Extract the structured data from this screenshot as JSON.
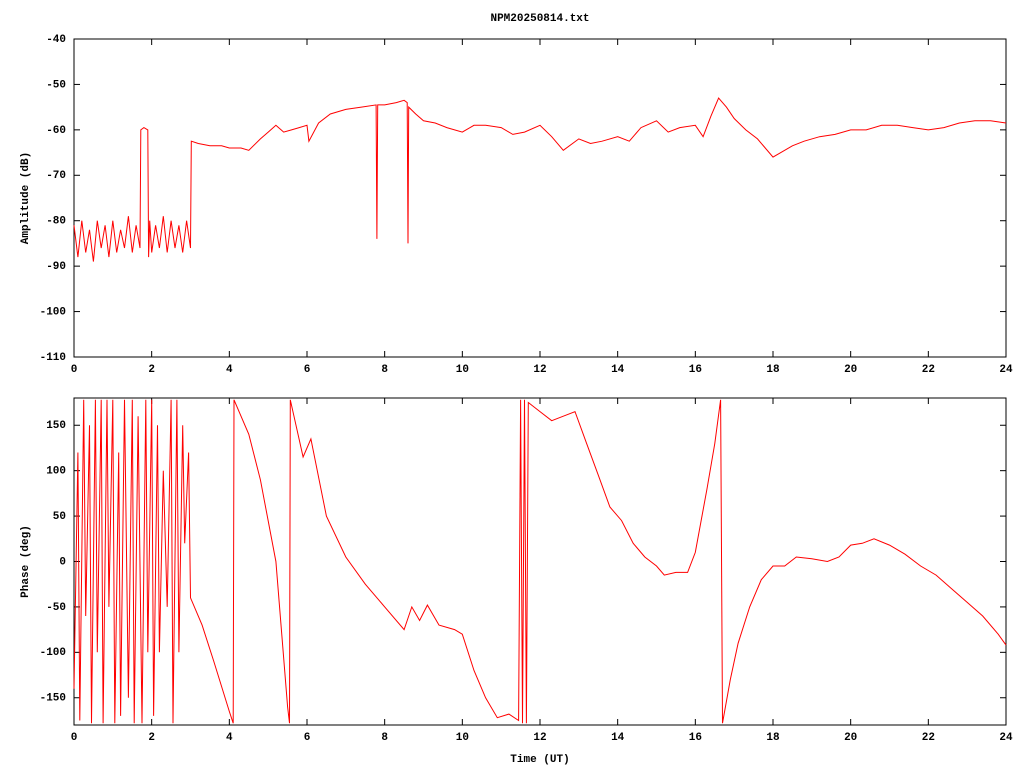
{
  "chart_data": [
    {
      "type": "line",
      "title": "NPM20250814.txt",
      "ylabel": "Amplitude (dB)",
      "xlim": [
        0,
        24
      ],
      "xticks": [
        0,
        2,
        4,
        6,
        8,
        10,
        12,
        14,
        16,
        18,
        20,
        22,
        24
      ],
      "ylim": [
        -110,
        -40
      ],
      "yticks": [
        -110,
        -100,
        -90,
        -80,
        -70,
        -60,
        -50,
        -40
      ],
      "color": "#ff0000",
      "x": [
        0,
        0.1,
        0.2,
        0.3,
        0.4,
        0.5,
        0.6,
        0.7,
        0.8,
        0.9,
        1.0,
        1.1,
        1.2,
        1.3,
        1.4,
        1.5,
        1.6,
        1.7,
        1.72,
        1.8,
        1.9,
        1.92,
        1.95,
        2.0,
        2.1,
        2.2,
        2.3,
        2.4,
        2.5,
        2.6,
        2.7,
        2.8,
        2.9,
        3.0,
        3.02,
        3.2,
        3.5,
        3.8,
        4.0,
        4.3,
        4.5,
        4.8,
        5.0,
        5.2,
        5.4,
        5.6,
        5.8,
        6.0,
        6.05,
        6.3,
        6.6,
        7.0,
        7.4,
        7.78,
        7.8,
        7.82,
        8.0,
        8.3,
        8.5,
        8.58,
        8.6,
        8.62,
        8.8,
        9.0,
        9.3,
        9.6,
        10.0,
        10.3,
        10.6,
        11.0,
        11.3,
        11.6,
        12.0,
        12.3,
        12.6,
        13.0,
        13.3,
        13.6,
        14.0,
        14.3,
        14.6,
        15.0,
        15.3,
        15.6,
        16.0,
        16.2,
        16.4,
        16.6,
        16.8,
        17.0,
        17.3,
        17.6,
        18.0,
        18.2,
        18.5,
        18.8,
        19.2,
        19.6,
        20.0,
        20.4,
        20.8,
        21.2,
        21.6,
        22.0,
        22.4,
        22.8,
        23.2,
        23.6,
        24.0
      ],
      "values": [
        -81,
        -88,
        -80,
        -87,
        -82,
        -89,
        -80,
        -86,
        -81,
        -88,
        -80,
        -87,
        -82,
        -86,
        -79,
        -87,
        -81,
        -86,
        -60,
        -59.5,
        -60,
        -88,
        -80,
        -87,
        -81,
        -86,
        -79,
        -87,
        -80,
        -86,
        -81,
        -87,
        -80,
        -86,
        -62.5,
        -63,
        -63.5,
        -63.5,
        -64,
        -64,
        -64.5,
        -62,
        -60.5,
        -59,
        -60.5,
        -60,
        -59.5,
        -59,
        -62.5,
        -58.5,
        -56.5,
        -55.5,
        -55,
        -54.5,
        -84,
        -54.5,
        -54.5,
        -54,
        -53.5,
        -54,
        -85,
        -55,
        -56.5,
        -58,
        -58.5,
        -59.5,
        -60.5,
        -59,
        -59,
        -59.5,
        -61,
        -60.5,
        -59,
        -61.5,
        -64.5,
        -62,
        -63,
        -62.5,
        -61.5,
        -62.5,
        -59.5,
        -58,
        -60.5,
        -59.5,
        -59,
        -61.5,
        -57,
        -53,
        -55,
        -57.5,
        -60,
        -62,
        -66,
        -65,
        -63.5,
        -62.5,
        -61.5,
        -61,
        -60,
        -60,
        -59,
        -59,
        -59.5,
        -60,
        -59.5,
        -58.5,
        -58,
        -58,
        -58.5
      ]
    },
    {
      "type": "line",
      "ylabel": "Phase (deg)",
      "xlabel": "Time (UT)",
      "xlim": [
        0,
        24
      ],
      "xticks": [
        0,
        2,
        4,
        6,
        8,
        10,
        12,
        14,
        16,
        18,
        20,
        22,
        24
      ],
      "ylim": [
        -180,
        180
      ],
      "yticks": [
        -150,
        -100,
        -50,
        0,
        50,
        100,
        150
      ],
      "color": "#ff0000",
      "x": [
        0,
        0.1,
        0.15,
        0.25,
        0.3,
        0.4,
        0.45,
        0.55,
        0.6,
        0.7,
        0.75,
        0.85,
        0.9,
        1.0,
        1.05,
        1.15,
        1.2,
        1.3,
        1.4,
        1.5,
        1.55,
        1.65,
        1.75,
        1.85,
        1.9,
        2.0,
        2.05,
        2.15,
        2.2,
        2.3,
        2.4,
        2.5,
        2.55,
        2.65,
        2.7,
        2.8,
        2.85,
        2.95,
        3.0,
        3.3,
        3.6,
        4.0,
        4.1,
        4.12,
        4.5,
        4.8,
        5.2,
        5.5,
        5.55,
        5.57,
        5.9,
        6.1,
        6.5,
        7.0,
        7.5,
        8.0,
        8.5,
        8.7,
        8.9,
        9.1,
        9.4,
        9.8,
        10.0,
        10.3,
        10.6,
        10.9,
        11.2,
        11.45,
        11.5,
        11.55,
        11.6,
        11.65,
        11.7,
        12.0,
        12.3,
        12.6,
        12.9,
        13.2,
        13.5,
        13.8,
        14.1,
        14.4,
        14.7,
        15.0,
        15.2,
        15.5,
        15.8,
        16.0,
        16.3,
        16.5,
        16.65,
        16.7,
        16.9,
        17.1,
        17.4,
        17.7,
        18.0,
        18.3,
        18.6,
        19.0,
        19.4,
        19.7,
        20.0,
        20.3,
        20.6,
        21.0,
        21.4,
        21.8,
        22.2,
        22.6,
        23.0,
        23.4,
        23.8,
        24.0
      ],
      "values": [
        -140,
        120,
        -175,
        178,
        -60,
        150,
        -178,
        178,
        -100,
        178,
        -178,
        178,
        -50,
        178,
        -178,
        120,
        -170,
        178,
        -150,
        178,
        -178,
        160,
        -178,
        178,
        -100,
        178,
        -170,
        150,
        -100,
        100,
        -50,
        178,
        -178,
        178,
        -100,
        150,
        20,
        120,
        -40,
        -70,
        -110,
        -165,
        -178,
        178,
        140,
        90,
        0,
        -160,
        -178,
        178,
        115,
        135,
        50,
        5,
        -25,
        -50,
        -75,
        -50,
        -65,
        -48,
        -70,
        -75,
        -80,
        -120,
        -150,
        -172,
        -168,
        -175,
        178,
        -178,
        178,
        -178,
        175,
        165,
        155,
        160,
        165,
        130,
        95,
        60,
        45,
        20,
        5,
        -5,
        -15,
        -12,
        -12,
        10,
        80,
        130,
        178,
        -178,
        -130,
        -90,
        -50,
        -20,
        -5,
        -5,
        5,
        3,
        0,
        5,
        18,
        20,
        25,
        18,
        8,
        -5,
        -15,
        -30,
        -45,
        -60,
        -80,
        -92
      ]
    }
  ]
}
